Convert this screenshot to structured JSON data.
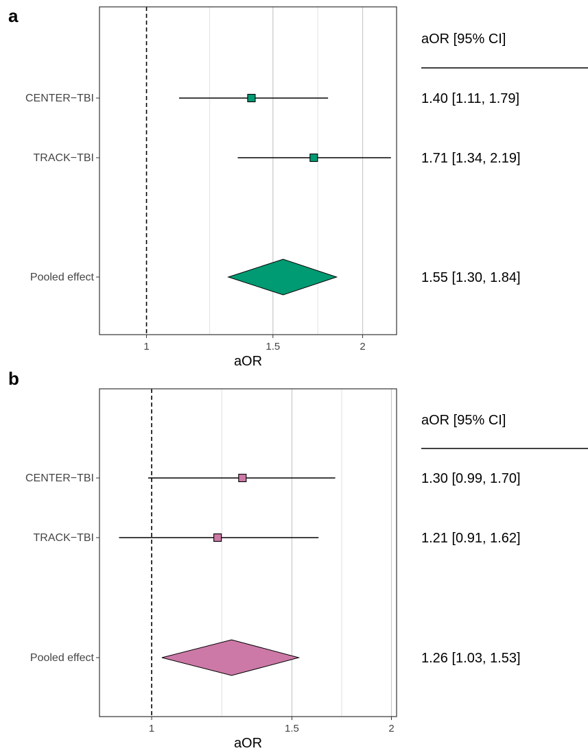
{
  "chart_data": [
    {
      "type": "forest",
      "panel": "a",
      "xlabel": "aOR",
      "xlim": [
        0.86,
        2.23
      ],
      "x_scale": "log",
      "xticks": [
        1,
        1.5,
        2
      ],
      "xtick_labels": [
        "1",
        "1.5",
        "2"
      ],
      "reference_line": 1,
      "grid": true,
      "marker_color": "#009a73",
      "ci_header": "aOR [95% CI]",
      "rows": [
        {
          "label": "CENTER−TBI",
          "estimate": 1.4,
          "lower": 1.11,
          "upper": 1.79,
          "ci_text": "1.40 [1.11, 1.79]",
          "kind": "study"
        },
        {
          "label": "TRACK−TBI",
          "estimate": 1.71,
          "lower": 1.34,
          "upper": 2.19,
          "ci_text": "1.71 [1.34, 2.19]",
          "kind": "study"
        },
        {
          "label": "Pooled effect",
          "estimate": 1.55,
          "lower": 1.3,
          "upper": 1.84,
          "ci_text": "1.55 [1.30, 1.84]",
          "kind": "pooled"
        }
      ]
    },
    {
      "type": "forest",
      "panel": "b",
      "xlabel": "aOR",
      "xlim": [
        0.86,
        2.03
      ],
      "x_scale": "log",
      "xticks": [
        1,
        1.5,
        2
      ],
      "xtick_labels": [
        "1",
        "1.5",
        "2"
      ],
      "reference_line": 1,
      "grid": true,
      "marker_color": "#cc79a7",
      "ci_header": "aOR [95% CI]",
      "rows": [
        {
          "label": "CENTER−TBI",
          "estimate": 1.3,
          "lower": 0.99,
          "upper": 1.7,
          "ci_text": "1.30 [0.99, 1.70]",
          "kind": "study"
        },
        {
          "label": "TRACK−TBI",
          "estimate": 1.21,
          "lower": 0.91,
          "upper": 1.62,
          "ci_text": "1.21 [0.91, 1.62]",
          "kind": "study"
        },
        {
          "label": "Pooled effect",
          "estimate": 1.26,
          "lower": 1.03,
          "upper": 1.53,
          "ci_text": "1.26 [1.03, 1.53]",
          "kind": "pooled"
        }
      ]
    }
  ]
}
